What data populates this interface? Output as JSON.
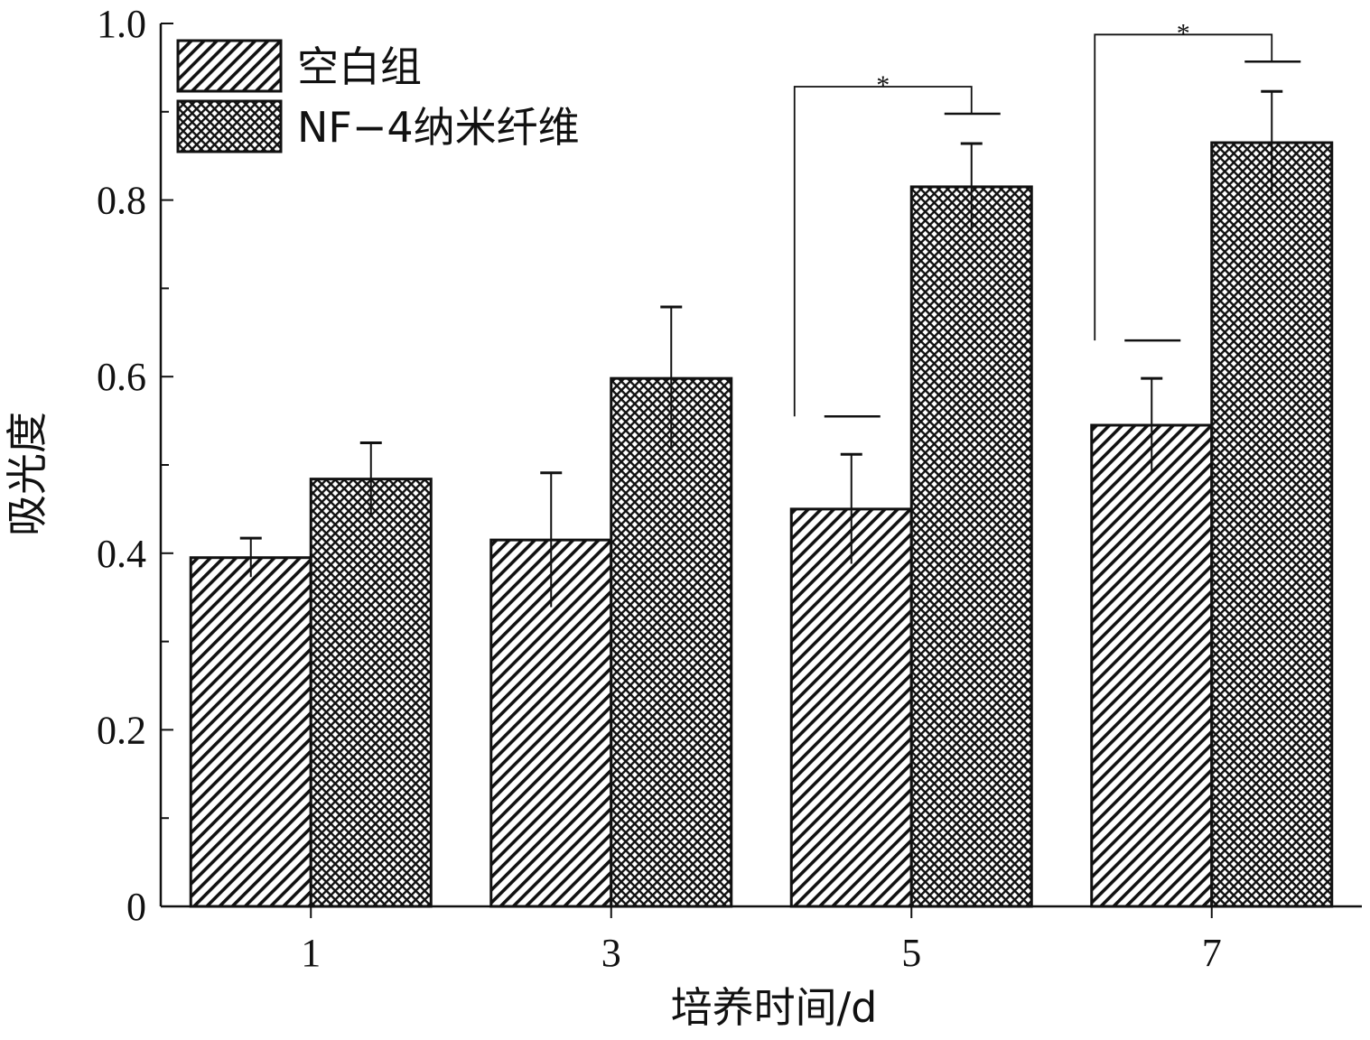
{
  "chart_data": {
    "type": "bar",
    "categories": [
      "1",
      "3",
      "5",
      "7"
    ],
    "series": [
      {
        "name": "空白组",
        "values": [
          0.395,
          0.415,
          0.45,
          0.545
        ],
        "errors": [
          0.022,
          0.076,
          0.062,
          0.053
        ],
        "pattern": "diagonal-hatch"
      },
      {
        "name": "NF−4纳米纤维",
        "values": [
          0.484,
          0.598,
          0.815,
          0.865
        ],
        "errors": [
          0.041,
          0.081,
          0.049,
          0.058
        ],
        "pattern": "crosshatch"
      }
    ],
    "xlabel": "培养时间/d",
    "ylabel": "吸光度",
    "ylim": [
      0,
      1.0
    ],
    "yticks": [
      "0",
      "0.2",
      "0.4",
      "0.6",
      "0.8",
      "1.0"
    ],
    "legend_position": "top-left",
    "grid": false,
    "significance": [
      {
        "category": "5",
        "label": "*"
      },
      {
        "category": "7",
        "label": "*"
      }
    ]
  }
}
